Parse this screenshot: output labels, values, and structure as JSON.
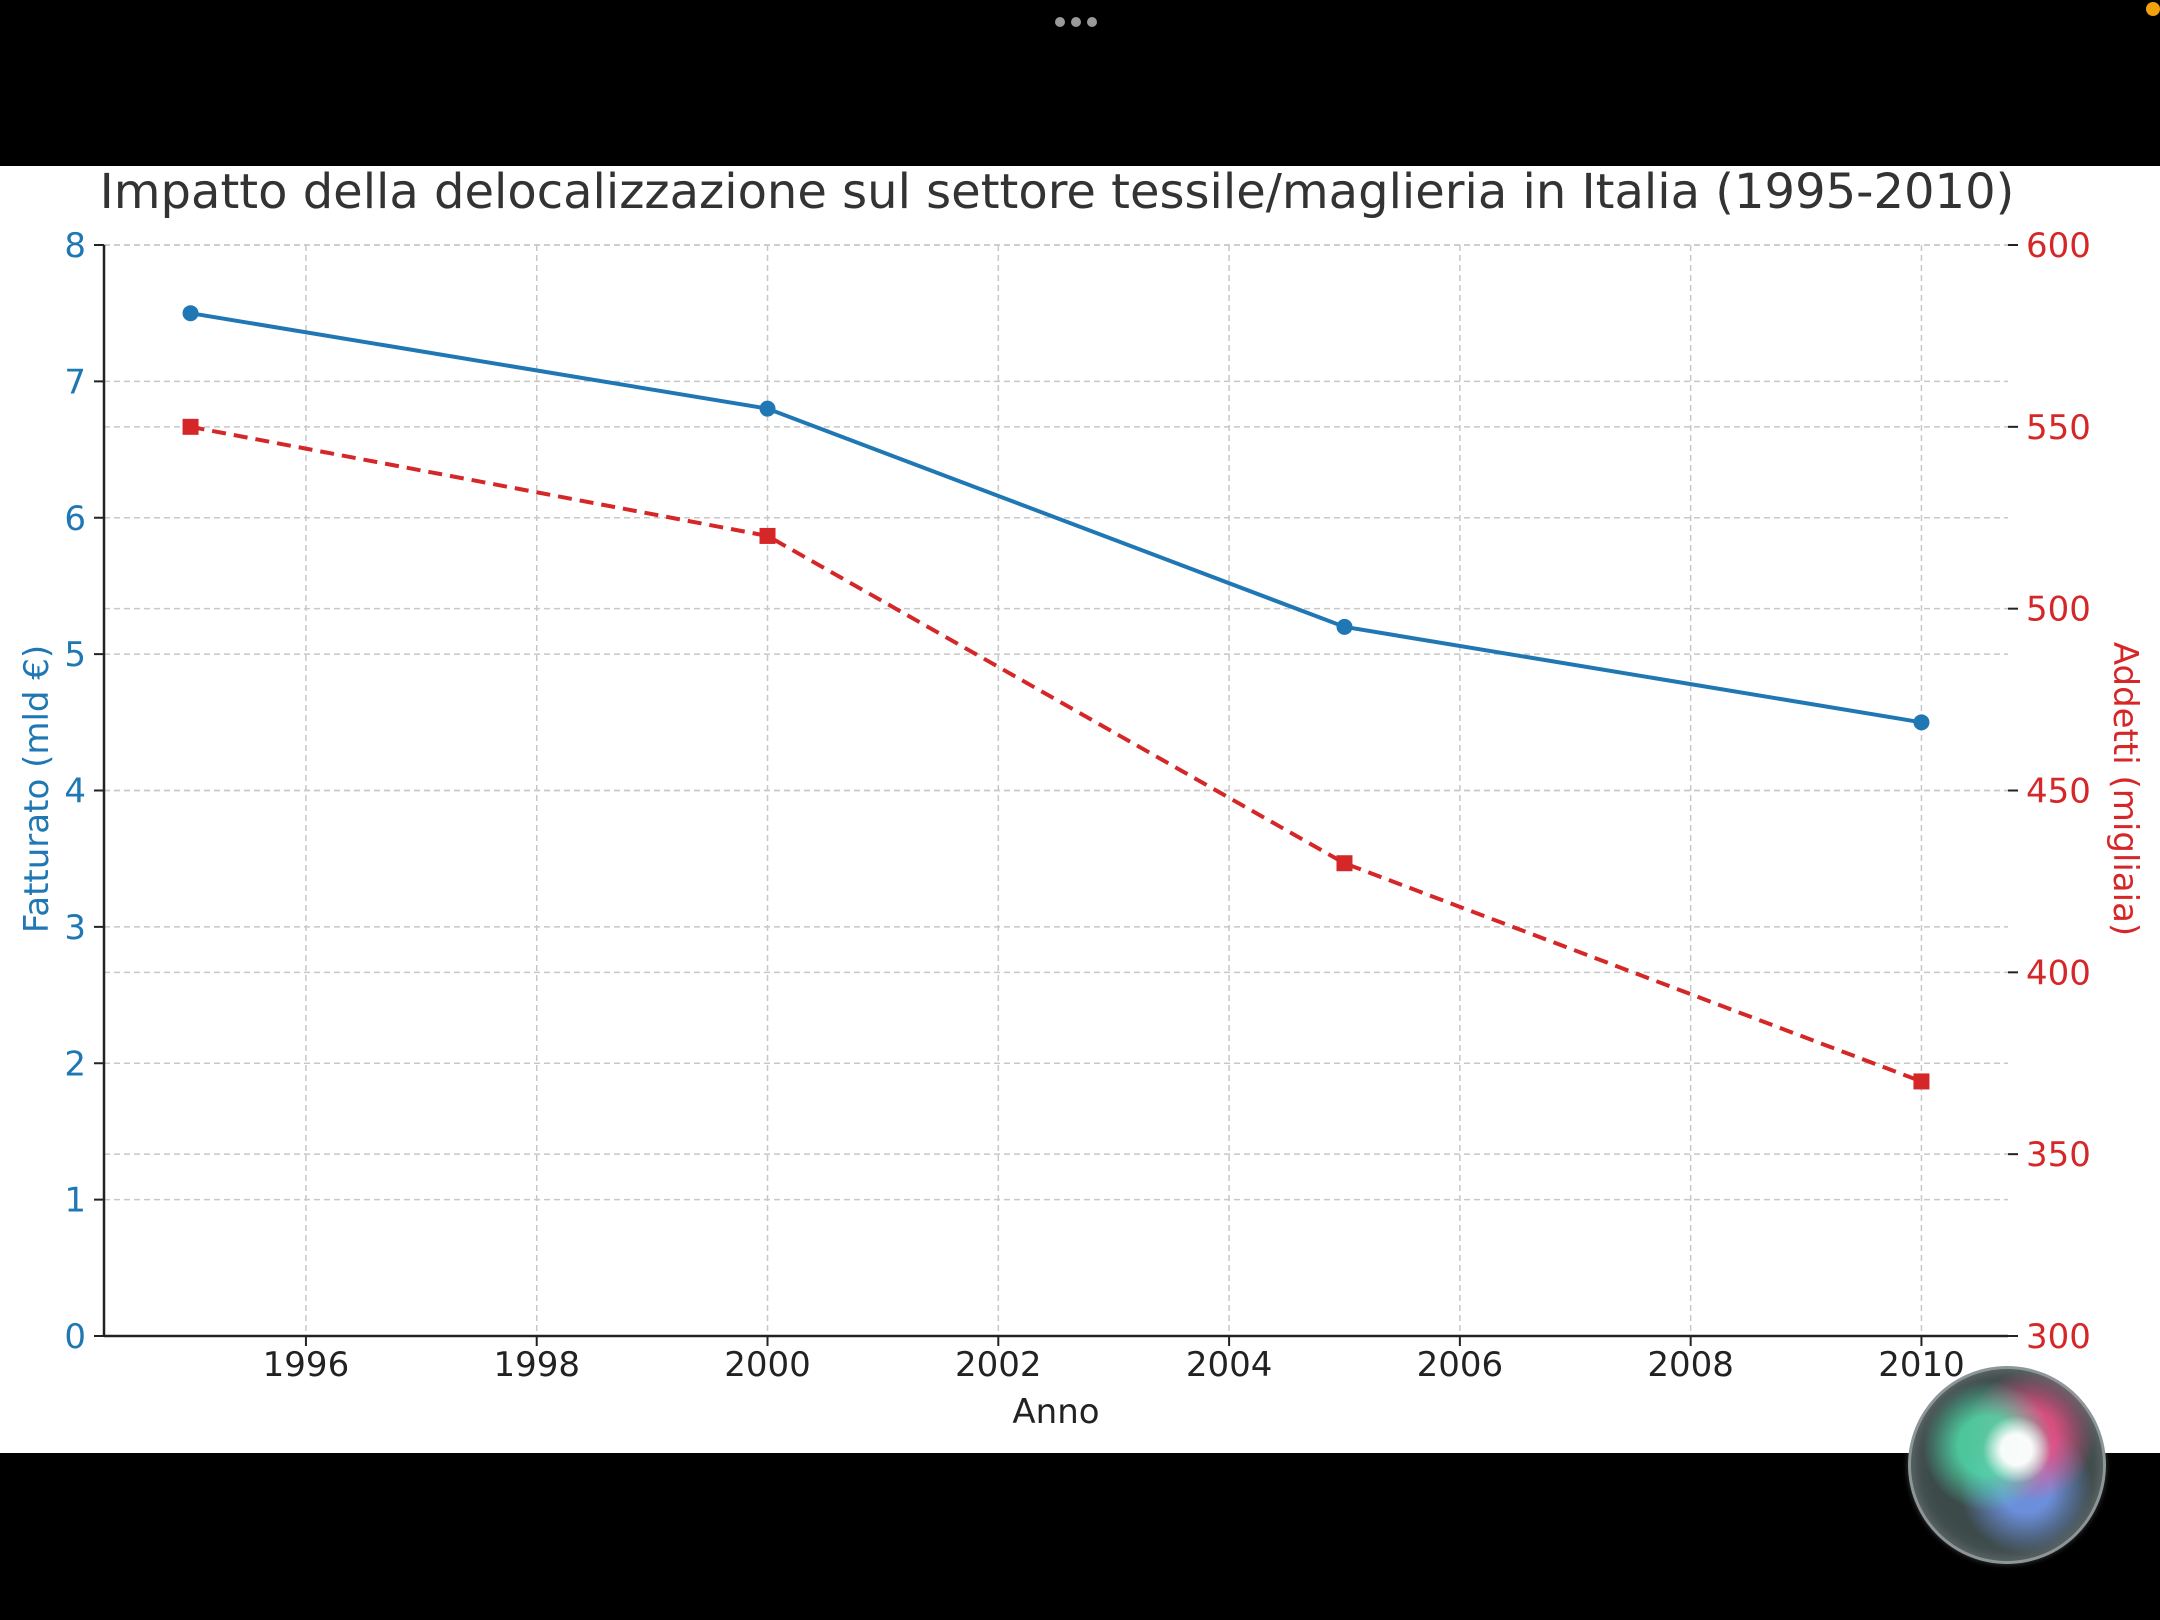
{
  "chart_data": {
    "type": "line",
    "title": "Impatto della delocalizzazione sul settore tessile/maglieria in Italia (1995-2010)",
    "xlabel": "Anno",
    "ylabel_left": "Fatturato (mld €)",
    "ylabel_right": "Addetti (migliaia)",
    "x": [
      1995,
      2000,
      2005,
      2010
    ],
    "xlim": [
      1994.25,
      2010.75
    ],
    "xticks": [
      "1996",
      "1998",
      "2000",
      "2002",
      "2004",
      "2006",
      "2008",
      "2010"
    ],
    "ylim_left": [
      0,
      8
    ],
    "yticks_left": [
      "0",
      "1",
      "2",
      "3",
      "4",
      "5",
      "6",
      "7",
      "8"
    ],
    "ylim_right": [
      300,
      600
    ],
    "yticks_right": [
      "300",
      "350",
      "400",
      "450",
      "500",
      "550",
      "600"
    ],
    "grid": true,
    "series": [
      {
        "axis": "left",
        "values": [
          7.5,
          6.8,
          5.2,
          4.5
        ],
        "color": "#1f77b4",
        "style": "solid",
        "marker": "circle"
      },
      {
        "axis": "right",
        "values": [
          550,
          520,
          430,
          370
        ],
        "color": "#d62728",
        "style": "dashed",
        "marker": "square"
      }
    ]
  },
  "icons": {
    "more": "more-dots-icon",
    "assistant": "siri-orb-icon",
    "status": "orange-status-dot"
  }
}
